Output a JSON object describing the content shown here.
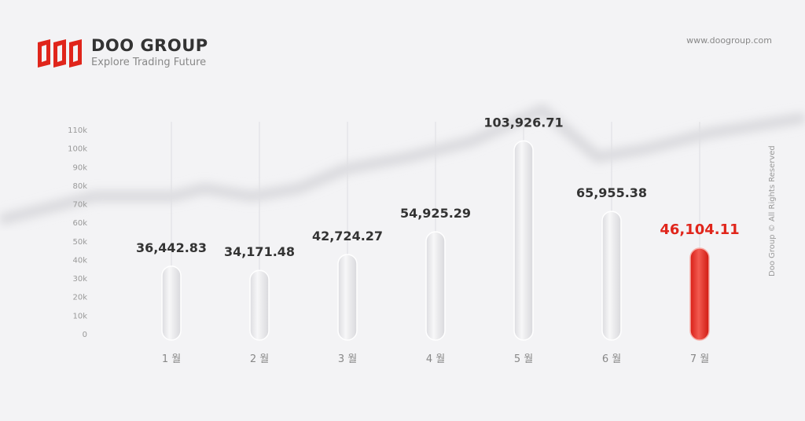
{
  "header": {
    "brand": "DOO GROUP",
    "tagline": "Explore Trading Future",
    "url": "www.doogroup.com",
    "rights": "Doo Group © All Rights Reserved"
  },
  "colors": {
    "accent": "#e0251b",
    "bar": "#e6e6e8",
    "text": "#333333"
  },
  "chart_data": {
    "type": "bar",
    "categories": [
      "1 월",
      "2 월",
      "3 월",
      "4 월",
      "5 월",
      "6 월",
      "7 월"
    ],
    "values": [
      36442.83,
      34171.48,
      42724.27,
      54925.29,
      103926.71,
      65955.38,
      46104.11
    ],
    "value_labels": [
      "36,442.83",
      "34,171.48",
      "42,724.27",
      "54,925.29",
      "103,926.71",
      "65,955.38",
      "46,104.11"
    ],
    "highlight_index": 6,
    "yticks": [
      "0",
      "10k",
      "20k",
      "30k",
      "40k",
      "50k",
      "60k",
      "70k",
      "80k",
      "90k",
      "100k",
      "110k"
    ],
    "ylim": [
      0,
      110000
    ],
    "grid": false,
    "legend": "none"
  }
}
